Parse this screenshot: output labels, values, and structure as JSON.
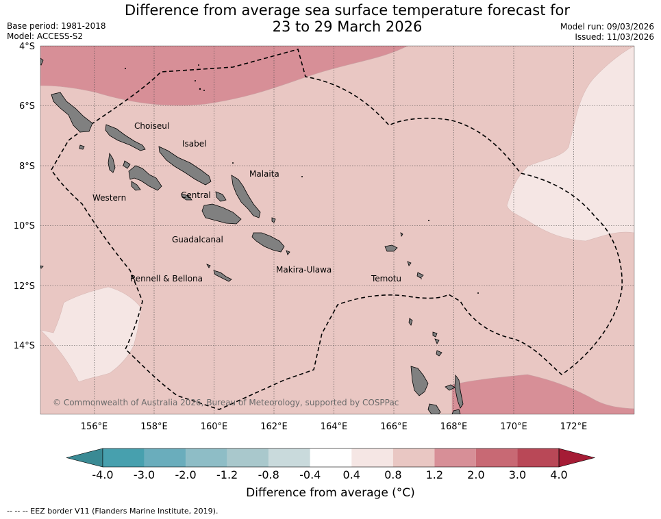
{
  "title_line1": "Difference from average sea surface temperature forecast for",
  "title_line2": "23 to 29 March 2026",
  "base_period": "Base period: 1981-2018",
  "model": "Model: ACCESS-S2",
  "model_run": "Model run: 09/03/2026",
  "issued": "Issued: 11/03/2026",
  "lat_labels": [
    "4°S",
    "6°S",
    "8°S",
    "10°S",
    "12°S",
    "14°S"
  ],
  "lon_labels": [
    "156°E",
    "158°E",
    "160°E",
    "162°E",
    "164°E",
    "166°E",
    "168°E",
    "170°E",
    "172°E"
  ],
  "provinces": [
    "Choiseul",
    "Isabel",
    "Malaita",
    "Western",
    "Central",
    "Guadalcanal",
    "Makira-Ulawa",
    "Rennell & Bellona",
    "Temotu"
  ],
  "copyright": "© Commonwealth of Australia 2026, Bureau of Meteorology, supported by COSPPac",
  "colorbar": {
    "labels": [
      "-4.0",
      "-3.0",
      "-2.0",
      "-1.2",
      "-0.8",
      "-0.4",
      "0.4",
      "0.8",
      "1.2",
      "2.0",
      "3.0",
      "4.0"
    ],
    "colors": [
      "#47a0ae",
      "#6aadbc",
      "#8ebdc6",
      "#a9c8cc",
      "#c9dadc",
      "#ffffff",
      "#f5e6e4",
      "#e9c7c3",
      "#d78f97",
      "#c86974",
      "#b94857"
    ],
    "low_color": "#3a8a94",
    "high_color": "#a51c35",
    "title": "Difference from average (°C)"
  },
  "eez_note": "--  --  -- EEZ border V11 (Flanders Marine Institute, 2019)."
}
